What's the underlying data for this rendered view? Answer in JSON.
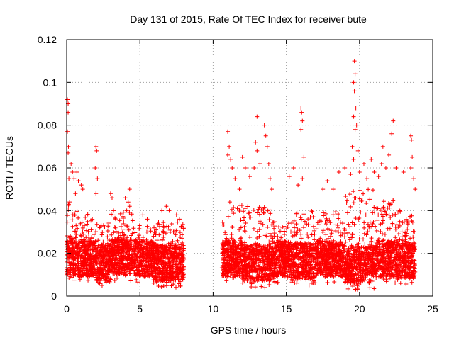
{
  "chart_data": {
    "type": "scatter",
    "title": "Day 131 of 2015, Rate Of TEC Index for receiver bute",
    "xlabel": "GPS time / hours",
    "ylabel": "ROTI / TECUs",
    "xlim": [
      0,
      25
    ],
    "ylim": [
      0,
      0.12
    ],
    "xticks": [
      0,
      5,
      10,
      15,
      20,
      25
    ],
    "xtick_labels": [
      "0",
      "5",
      "10",
      "15",
      "20",
      "25"
    ],
    "yticks": [
      0,
      0.02,
      0.04,
      0.06,
      0.08,
      0.1,
      0.12
    ],
    "ytick_labels": [
      "0",
      "0.02",
      "0.04",
      "0.06",
      "0.08",
      "0.1",
      "0.12"
    ],
    "grid": true,
    "marker": "+",
    "marker_color": "#ff0000",
    "data_gap_hours": [
      8.0,
      10.6
    ],
    "bands": [
      {
        "x": [
          0.0,
          0.5
        ],
        "y": [
          0.007,
          0.045
        ]
      },
      {
        "x": [
          0.5,
          2.0
        ],
        "y": [
          0.006,
          0.04
        ]
      },
      {
        "x": [
          2.0,
          3.0
        ],
        "y": [
          0.004,
          0.035
        ]
      },
      {
        "x": [
          3.0,
          4.5
        ],
        "y": [
          0.007,
          0.04
        ]
      },
      {
        "x": [
          4.5,
          6.0
        ],
        "y": [
          0.006,
          0.033
        ]
      },
      {
        "x": [
          6.0,
          8.0
        ],
        "y": [
          0.004,
          0.035
        ]
      },
      {
        "x": [
          10.6,
          12.0
        ],
        "y": [
          0.006,
          0.045
        ]
      },
      {
        "x": [
          12.0,
          14.0
        ],
        "y": [
          0.004,
          0.042
        ]
      },
      {
        "x": [
          14.0,
          15.5
        ],
        "y": [
          0.006,
          0.035
        ]
      },
      {
        "x": [
          15.5,
          17.0
        ],
        "y": [
          0.005,
          0.04
        ]
      },
      {
        "x": [
          17.0,
          19.0
        ],
        "y": [
          0.006,
          0.04
        ]
      },
      {
        "x": [
          19.0,
          21.0
        ],
        "y": [
          0.003,
          0.05
        ]
      },
      {
        "x": [
          21.0,
          22.5
        ],
        "y": [
          0.006,
          0.045
        ]
      },
      {
        "x": [
          22.5,
          23.8
        ],
        "y": [
          0.005,
          0.04
        ]
      }
    ],
    "points": [
      [
        0.05,
        0.092
      ],
      [
        0.1,
        0.09
      ],
      [
        0.1,
        0.086
      ],
      [
        0.05,
        0.077
      ],
      [
        0.12,
        0.07
      ],
      [
        0.1,
        0.067
      ],
      [
        0.15,
        0.055
      ],
      [
        0.3,
        0.062
      ],
      [
        0.4,
        0.058
      ],
      [
        0.5,
        0.055
      ],
      [
        0.7,
        0.058
      ],
      [
        0.8,
        0.054
      ],
      [
        1.0,
        0.052
      ],
      [
        1.1,
        0.05
      ],
      [
        0.6,
        0.048
      ],
      [
        2.0,
        0.07
      ],
      [
        2.05,
        0.068
      ],
      [
        1.95,
        0.06
      ],
      [
        2.1,
        0.055
      ],
      [
        2.0,
        0.048
      ],
      [
        3.0,
        0.048
      ],
      [
        3.1,
        0.046
      ],
      [
        3.2,
        0.04
      ],
      [
        4.0,
        0.046
      ],
      [
        4.2,
        0.044
      ],
      [
        4.3,
        0.042
      ],
      [
        4.1,
        0.04
      ],
      [
        4.3,
        0.05
      ],
      [
        5.2,
        0.038
      ],
      [
        5.5,
        0.036
      ],
      [
        6.5,
        0.04
      ],
      [
        6.8,
        0.042
      ],
      [
        7.0,
        0.04
      ],
      [
        7.5,
        0.038
      ],
      [
        7.7,
        0.036
      ],
      [
        11.0,
        0.077
      ],
      [
        11.1,
        0.07
      ],
      [
        11.0,
        0.066
      ],
      [
        11.2,
        0.064
      ],
      [
        11.3,
        0.06
      ],
      [
        11.5,
        0.055
      ],
      [
        11.8,
        0.05
      ],
      [
        12.0,
        0.065
      ],
      [
        12.2,
        0.06
      ],
      [
        12.5,
        0.056
      ],
      [
        12.8,
        0.06
      ],
      [
        12.9,
        0.072
      ],
      [
        13.0,
        0.084
      ],
      [
        13.0,
        0.068
      ],
      [
        13.2,
        0.062
      ],
      [
        13.5,
        0.08
      ],
      [
        13.6,
        0.075
      ],
      [
        13.7,
        0.07
      ],
      [
        13.8,
        0.062
      ],
      [
        13.9,
        0.055
      ],
      [
        14.0,
        0.05
      ],
      [
        15.2,
        0.056
      ],
      [
        15.5,
        0.06
      ],
      [
        16.0,
        0.088
      ],
      [
        16.05,
        0.086
      ],
      [
        16.1,
        0.082
      ],
      [
        16.0,
        0.078
      ],
      [
        16.2,
        0.065
      ],
      [
        16.1,
        0.055
      ],
      [
        15.8,
        0.052
      ],
      [
        17.5,
        0.05
      ],
      [
        17.8,
        0.054
      ],
      [
        18.2,
        0.05
      ],
      [
        18.6,
        0.058
      ],
      [
        19.0,
        0.06
      ],
      [
        19.4,
        0.057
      ],
      [
        19.6,
        0.064
      ],
      [
        19.5,
        0.07
      ],
      [
        19.6,
        0.084
      ],
      [
        19.65,
        0.096
      ],
      [
        19.6,
        0.1
      ],
      [
        19.7,
        0.104
      ],
      [
        19.65,
        0.11
      ],
      [
        19.75,
        0.088
      ],
      [
        19.8,
        0.08
      ],
      [
        19.7,
        0.078
      ],
      [
        19.9,
        0.068
      ],
      [
        20.0,
        0.058
      ],
      [
        20.3,
        0.062
      ],
      [
        20.5,
        0.055
      ],
      [
        20.8,
        0.064
      ],
      [
        21.0,
        0.058
      ],
      [
        21.3,
        0.056
      ],
      [
        21.6,
        0.07
      ],
      [
        21.5,
        0.062
      ],
      [
        21.8,
        0.06
      ],
      [
        22.0,
        0.066
      ],
      [
        22.3,
        0.082
      ],
      [
        22.2,
        0.076
      ],
      [
        22.5,
        0.06
      ],
      [
        23.0,
        0.058
      ],
      [
        23.5,
        0.075
      ],
      [
        23.55,
        0.073
      ],
      [
        23.6,
        0.065
      ],
      [
        23.5,
        0.06
      ],
      [
        23.7,
        0.055
      ],
      [
        23.8,
        0.05
      ]
    ]
  }
}
